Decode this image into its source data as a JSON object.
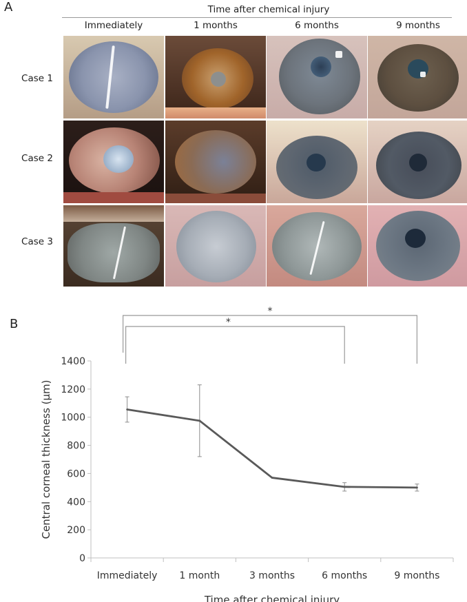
{
  "panel_a": {
    "label": "A",
    "super_title": "Time after chemical injury",
    "columns": [
      "Immediately",
      "1 months",
      "6 months",
      "9 months"
    ],
    "rows": [
      "Case 1",
      "Case 2",
      "Case 3"
    ]
  },
  "panel_b": {
    "label": "B"
  },
  "chart_data": {
    "type": "line",
    "categories": [
      "Immediately",
      "1 month",
      "3 months",
      "6 months",
      "9 months"
    ],
    "series": [
      {
        "values": [
          1055,
          975,
          570,
          505,
          500
        ],
        "error": [
          90,
          255,
          0,
          30,
          25
        ]
      }
    ],
    "xlabel": "Time after chemical injury",
    "ylabel": "Central corneal thickness (μm)",
    "ylim": [
      0,
      1400
    ],
    "yticks": [
      0,
      200,
      400,
      600,
      800,
      1000,
      1200,
      1400
    ],
    "grid": false,
    "line_color": "#595959",
    "significance": [
      {
        "from": "Immediately",
        "to": "9 months",
        "label": "*"
      },
      {
        "from": "Immediately",
        "to": "6 months",
        "label": "*"
      }
    ]
  }
}
